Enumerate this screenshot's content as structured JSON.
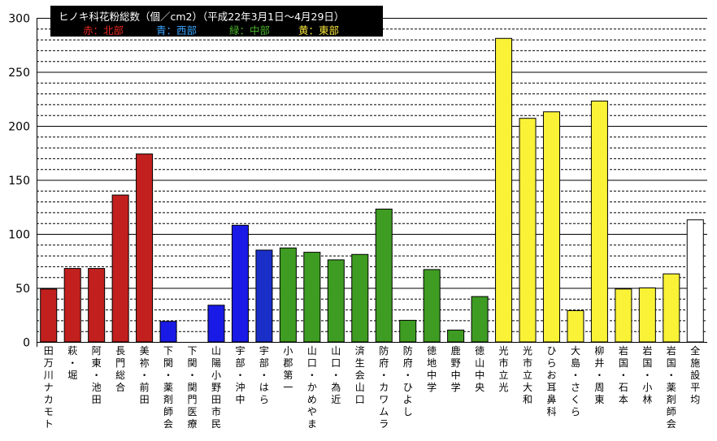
{
  "chart_data": {
    "type": "bar",
    "title": "ヒノキ科花粉総数（個／cm2）（平成22年3月1日～4月29日）",
    "legend": [
      {
        "label": "赤：北部",
        "color": "#e8271f"
      },
      {
        "label": "青：西部",
        "color": "#36a3ff"
      },
      {
        "label": "緑：中部",
        "color": "#4ab32a"
      },
      {
        "label": "黄：東部",
        "color": "#f5e23a"
      }
    ],
    "ylim": [
      0,
      300
    ],
    "yticks": [
      0,
      50,
      100,
      150,
      200,
      250,
      300
    ],
    "grid": true,
    "categories": [
      "田万川ナカモト",
      "萩・堀",
      "阿東・池田",
      "長門総合",
      "美祢・前田",
      "下関・薬剤師会",
      "下関・関門医療",
      "山陽小野田市民",
      "宇部・沖中",
      "宇部・はら",
      "小郡第一",
      "山口・かめやま",
      "山口・為近",
      "済生会山口",
      "防府・カワムラ",
      "防府・ひよし",
      "徳地中学",
      "鹿野中学",
      "徳山中央",
      "光市立光",
      "光市立大和",
      "ひらお耳鼻科",
      "大島・さくら",
      "柳井・周東",
      "岩国・石本",
      "岩国・小林",
      "岩国・薬剤師会",
      "全施設平均"
    ],
    "values": [
      49,
      68,
      68,
      136,
      174,
      19,
      0,
      34,
      108,
      85,
      87,
      83,
      76,
      81,
      123,
      20,
      67,
      11,
      42,
      281,
      207,
      213,
      29,
      223,
      49,
      50,
      63,
      113
    ],
    "bar_colors": [
      "#c1201e",
      "#c1201e",
      "#c1201e",
      "#c1201e",
      "#c1201e",
      "#1a1ae6",
      "#1a1ae6",
      "#1a1ae6",
      "#1a1ae6",
      "#1a2ec8",
      "#3e9c22",
      "#3e9c22",
      "#3e9c22",
      "#3e9c22",
      "#3e9c22",
      "#3e9c22",
      "#3e9c22",
      "#3e9c22",
      "#3e9c22",
      "#f9f237",
      "#f9f237",
      "#f9f237",
      "#f9f237",
      "#f9f237",
      "#f9f237",
      "#f9f237",
      "#f9f237",
      "#ffffff"
    ]
  }
}
